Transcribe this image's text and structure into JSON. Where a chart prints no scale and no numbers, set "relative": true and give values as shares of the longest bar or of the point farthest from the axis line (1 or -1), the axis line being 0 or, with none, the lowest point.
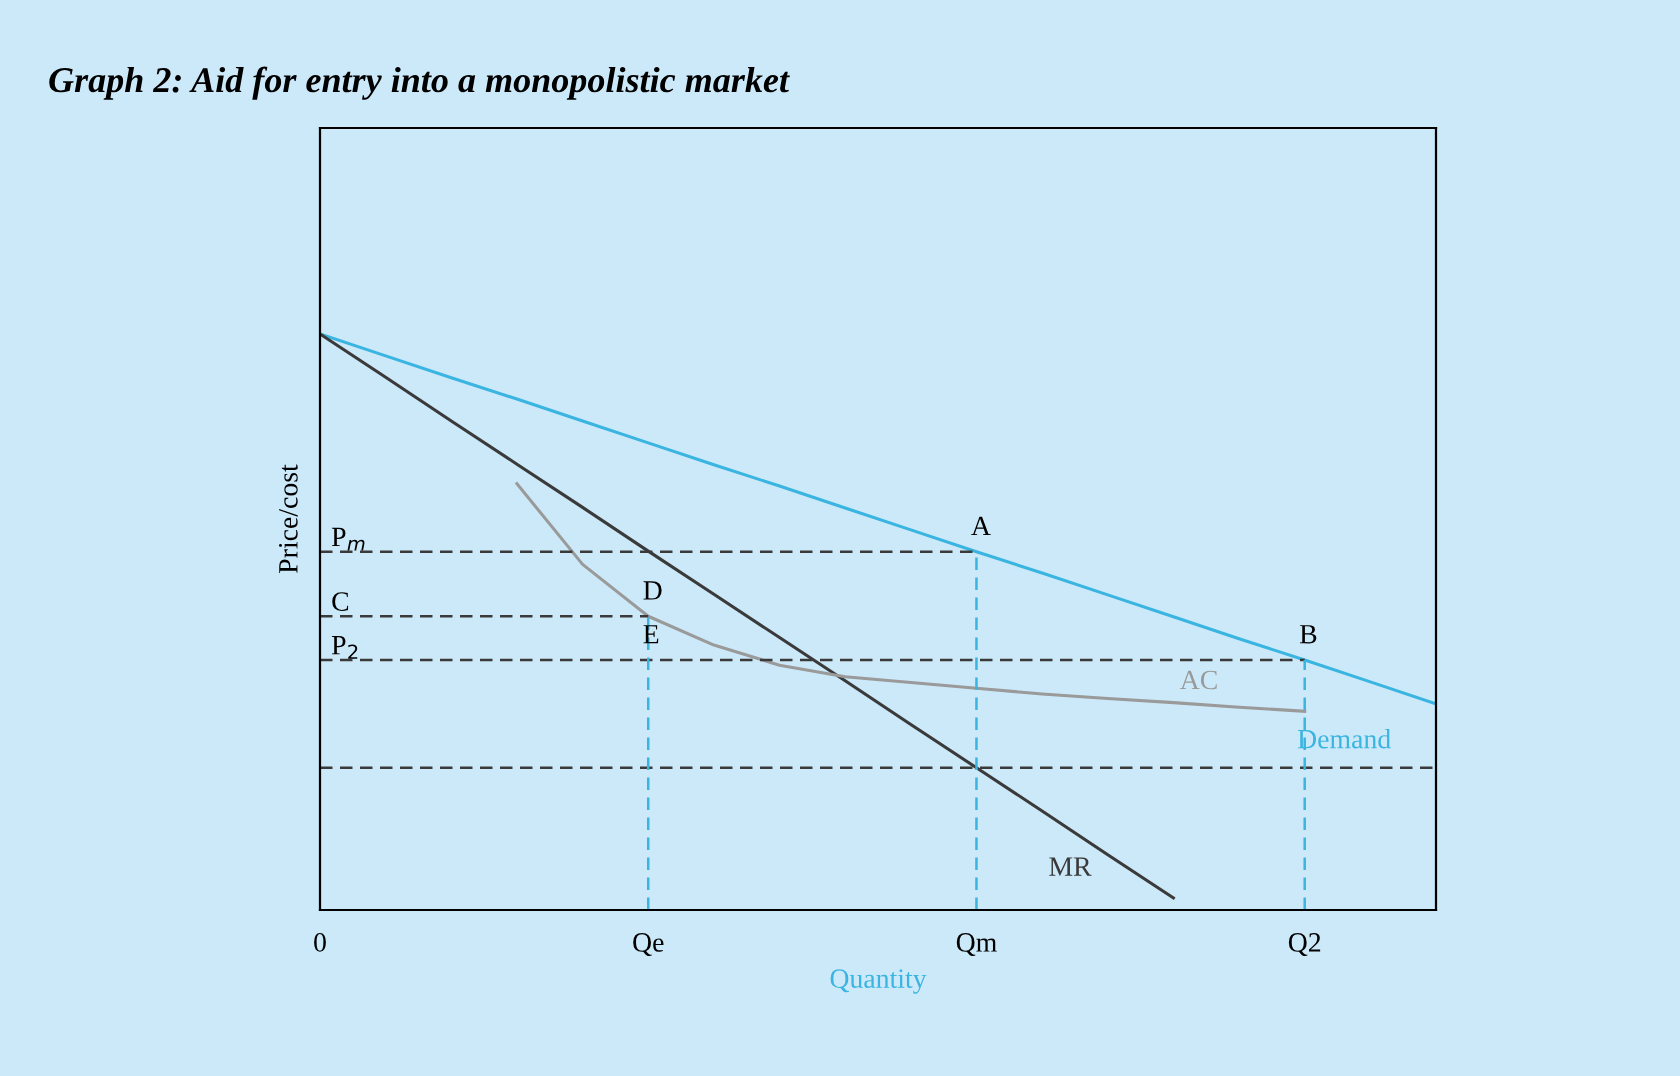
{
  "chart_data": {
    "type": "line",
    "title": "Graph 2: Aid for entry into a monopolistic market",
    "xlabel": "Quantity",
    "ylabel": "Price/cost",
    "relative": true,
    "categories": [
      "0",
      null,
      null,
      null,
      null,
      "Qe",
      null,
      null,
      null,
      null,
      "Qm",
      null,
      null,
      null,
      null,
      "Q2",
      null,
      null
    ],
    "grid": false,
    "legend": false,
    "tick_labels": "x",
    "series": [
      {
        "name": "Demand",
        "color": "#3ab4e0",
        "values": [
          1,
          0.962,
          0.924,
          0.887,
          0.849,
          0.811,
          0.773,
          0.736,
          0.698,
          0.66,
          0.622,
          0.585,
          0.547,
          0.509,
          0.471,
          0.434,
          0.396,
          0.358
        ]
      },
      {
        "name": "MR",
        "color": "#3a3a3a",
        "values": [
          1,
          0.925,
          0.849,
          0.774,
          0.699,
          0.623,
          0.548,
          0.473,
          0.398,
          0.322,
          0.247,
          0.172,
          0.096,
          0.021,
          null,
          null,
          null,
          null
        ]
      },
      {
        "name": "AC",
        "color": "#9a9a9a",
        "values": [
          null,
          null,
          null,
          0.74,
          0.6,
          0.51,
          0.46,
          0.425,
          0.405,
          0.395,
          0.385,
          0.375,
          0.367,
          0.36,
          0.352,
          0.345,
          null,
          null
        ]
      },
      {
        "color": "#3a3a3a",
        "line_style": "dashed",
        "values": [
          0.622,
          0.622,
          0.622,
          0.622,
          0.622,
          0.622,
          0.622,
          0.622,
          0.622,
          0.622,
          0.622,
          null,
          null,
          null,
          null,
          null,
          null,
          null
        ]
      },
      {
        "color": "#3a3a3a",
        "line_style": "dashed",
        "values": [
          0.51,
          0.51,
          0.51,
          0.51,
          0.51,
          0.51,
          null,
          null,
          null,
          null,
          null,
          null,
          null,
          null,
          null,
          null,
          null,
          null
        ]
      },
      {
        "color": "#3a3a3a",
        "line_style": "dashed",
        "values": [
          0.434,
          0.434,
          0.434,
          0.434,
          0.434,
          0.434,
          0.434,
          0.434,
          0.434,
          0.434,
          0.434,
          0.434,
          0.434,
          0.434,
          0.434,
          0.434,
          null,
          null
        ]
      },
      {
        "color": "#3a3a3a",
        "line_style": "dashed",
        "values": [
          0.247,
          0.247,
          0.247,
          0.247,
          0.247,
          0.247,
          0.247,
          0.247,
          0.247,
          0.247,
          0.247,
          0.247,
          0.247,
          0.247,
          0.247,
          0.247,
          0.247,
          0.247
        ]
      },
      {
        "color": "#3ab4e0",
        "line_style": "dashed",
        "x": [
          "Qe",
          "Qe"
        ],
        "values": [
          0,
          0.51
        ]
      },
      {
        "color": "#3ab4e0",
        "line_style": "dashed",
        "x": [
          "Qm",
          "Qm"
        ],
        "values": [
          0,
          0.622
        ]
      },
      {
        "color": "#3ab4e0",
        "line_style": "dashed",
        "x": [
          "Q2",
          "Q2"
        ],
        "values": [
          0,
          0.434
        ]
      }
    ],
    "annotations": [
      {
        "text": "P$_{m}$",
        "x": "0",
        "y": 0.622
      },
      {
        "text": "C",
        "x": "0",
        "y": 0.51
      },
      {
        "text": "P$_{2}$",
        "x": "0",
        "y": 0.434
      },
      {
        "text": "A",
        "x": "Qm",
        "y": 0.622
      },
      {
        "text": "B",
        "x": "Q2",
        "y": 0.434
      },
      {
        "text": "D",
        "x": "Qe",
        "y": 0.51
      },
      {
        "text": "E",
        "x": "Qe",
        "y": 0.434
      }
    ]
  }
}
